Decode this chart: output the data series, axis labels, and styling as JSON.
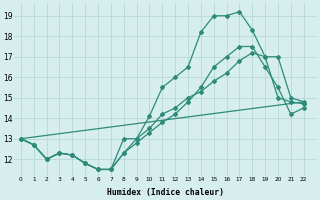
{
  "line1_x": [
    0,
    1,
    2,
    3,
    4,
    5,
    6,
    7,
    8,
    9,
    10,
    11,
    12,
    13,
    14,
    15,
    16,
    17,
    18,
    19,
    20,
    21,
    22
  ],
  "line1_y": [
    13,
    12.7,
    12.0,
    12.3,
    12.2,
    11.8,
    11.5,
    11.5,
    13.0,
    13.0,
    14.1,
    15.5,
    16.0,
    16.5,
    18.2,
    19.0,
    19.0,
    19.2,
    18.3,
    17.0,
    15.0,
    14.8,
    14.7
  ],
  "line2_x": [
    0,
    1,
    2,
    3,
    4,
    5,
    6,
    7,
    8,
    9,
    10,
    11,
    12,
    13,
    14,
    15,
    16,
    17,
    18,
    19,
    20,
    21,
    22
  ],
  "line2_y": [
    13,
    12.7,
    12.0,
    12.3,
    12.2,
    11.8,
    11.5,
    11.5,
    12.3,
    13.0,
    13.5,
    14.2,
    14.5,
    15.0,
    15.3,
    15.8,
    16.2,
    16.8,
    17.2,
    17.0,
    17.0,
    15.0,
    14.8
  ],
  "line3_x": [
    0,
    22
  ],
  "line3_y": [
    13,
    14.8
  ],
  "line4_x": [
    0,
    1,
    2,
    3,
    4,
    5,
    6,
    7,
    8,
    9,
    10,
    11,
    12,
    13,
    14,
    15,
    16,
    17,
    18,
    19,
    20,
    21,
    22
  ],
  "line4_y": [
    13,
    12.7,
    12.0,
    12.3,
    12.2,
    11.8,
    11.5,
    11.5,
    12.3,
    12.8,
    13.3,
    13.8,
    14.2,
    14.8,
    15.5,
    16.5,
    17.0,
    17.5,
    17.5,
    16.5,
    15.5,
    14.2,
    14.5
  ],
  "color": "#2d8b77",
  "bg_color": "#d6eeed",
  "grid_color": "#b8d8d8",
  "xlabel": "Humidex (Indice chaleur)",
  "yticks": [
    12,
    13,
    14,
    15,
    16,
    17,
    18,
    19
  ],
  "xlim": [
    -0.5,
    23
  ],
  "ylim": [
    11.2,
    19.6
  ],
  "marker": "D",
  "markersize": 2.0,
  "linewidth": 0.9
}
